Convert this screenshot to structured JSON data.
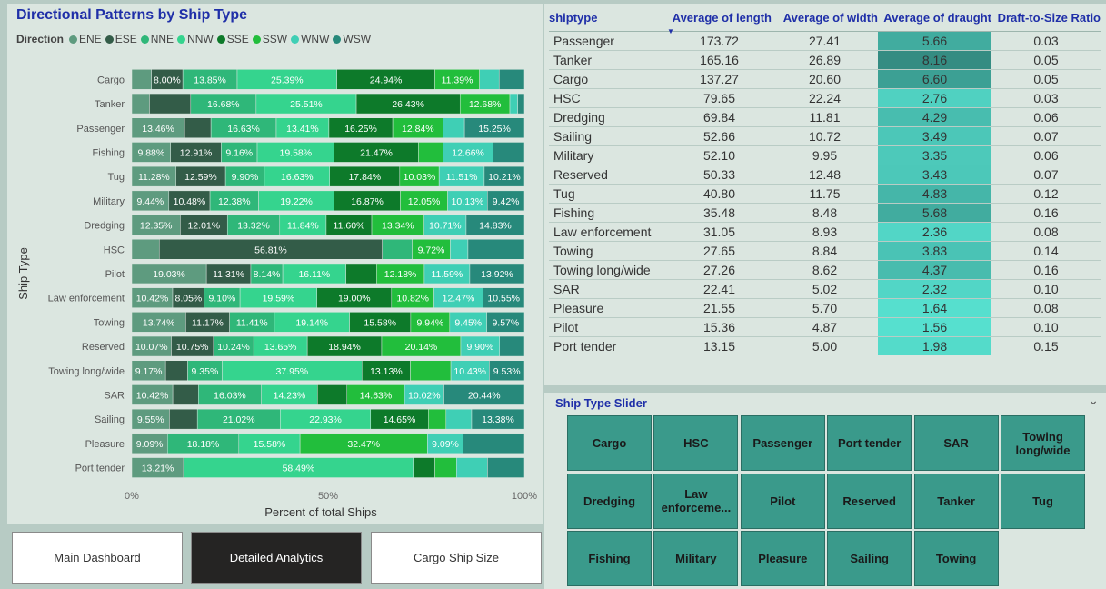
{
  "chart_panel": {
    "title": "Directional Patterns by Ship Type",
    "legend_title": "Direction",
    "x_axis_title": "Percent of total Ships",
    "y_axis_title": "Ship Type"
  },
  "chart_data": {
    "type": "bar",
    "orientation": "horizontal",
    "stacking": "percent",
    "title": "Directional Patterns by Ship Type",
    "xlabel": "Percent of total Ships",
    "ylabel": "Ship Type",
    "xlim": [
      0,
      100
    ],
    "x_ticks": [
      "0%",
      "50%",
      "100%"
    ],
    "legend_title": "Direction",
    "legend_position": "top",
    "series_names": [
      "ENE",
      "ESE",
      "NNE",
      "NNW",
      "SSE",
      "SSW",
      "WNW",
      "WSW"
    ],
    "series_colors": [
      "#5e9b7f",
      "#335c48",
      "#2fb779",
      "#35d48e",
      "#0d7a2a",
      "#22be3c",
      "#3fcfb5",
      "#27897b"
    ],
    "categories": [
      "Cargo",
      "Tanker",
      "Passenger",
      "Fishing",
      "Tug",
      "Military",
      "Dredging",
      "HSC",
      "Pilot",
      "Law enforcement",
      "Towing",
      "Reserved",
      "Towing long/wide",
      "SAR",
      "Sailing",
      "Pleasure",
      "Port tender"
    ],
    "rows": [
      {
        "values": [
          5.0,
          8.0,
          13.85,
          25.39,
          24.94,
          11.39,
          5.0,
          6.43
        ],
        "labels": [
          "",
          "8.00%",
          "13.85%",
          "25.39%",
          "24.94%",
          "11.39%",
          "",
          ""
        ]
      },
      {
        "values": [
          4.5,
          10.5,
          16.68,
          25.51,
          26.43,
          12.68,
          2.0,
          1.7
        ],
        "labels": [
          "",
          "",
          "16.68%",
          "25.51%",
          "26.43%",
          "12.68%",
          "",
          ""
        ]
      },
      {
        "values": [
          13.46,
          6.71,
          16.63,
          13.41,
          16.25,
          12.84,
          5.45,
          15.25
        ],
        "labels": [
          "13.46%",
          "",
          "16.63%",
          "13.41%",
          "16.25%",
          "12.84%",
          "",
          "15.25%"
        ]
      },
      {
        "values": [
          9.88,
          12.91,
          9.16,
          19.58,
          21.47,
          6.34,
          12.66,
          8.0
        ],
        "labels": [
          "9.88%",
          "12.91%",
          "9.16%",
          "19.58%",
          "21.47%",
          "",
          "12.66%",
          ""
        ]
      },
      {
        "values": [
          11.28,
          12.59,
          9.9,
          16.63,
          17.84,
          10.03,
          11.51,
          10.21
        ],
        "labels": [
          "11.28%",
          "12.59%",
          "9.90%",
          "16.63%",
          "17.84%",
          "10.03%",
          "11.51%",
          "10.21%"
        ]
      },
      {
        "values": [
          9.44,
          10.48,
          12.38,
          19.22,
          16.87,
          12.05,
          10.13,
          9.42
        ],
        "labels": [
          "9.44%",
          "10.48%",
          "12.38%",
          "19.22%",
          "16.87%",
          "12.05%",
          "10.13%",
          "9.42%"
        ]
      },
      {
        "values": [
          12.35,
          12.01,
          13.32,
          11.84,
          11.6,
          13.34,
          10.71,
          14.83
        ],
        "labels": [
          "12.35%",
          "12.01%",
          "13.32%",
          "11.84%",
          "11.60%",
          "13.34%",
          "10.71%",
          "14.83%"
        ]
      },
      {
        "values": [
          7.0,
          56.81,
          7.6,
          0,
          0,
          9.72,
          4.5,
          14.37
        ],
        "labels": [
          "",
          "56.81%",
          "",
          "",
          "",
          "9.72%",
          "",
          ""
        ]
      },
      {
        "values": [
          19.03,
          11.31,
          8.14,
          16.11,
          7.8,
          12.18,
          11.59,
          13.92
        ],
        "labels": [
          "19.03%",
          "11.31%",
          "8.14%",
          "16.11%",
          "",
          "12.18%",
          "11.59%",
          "13.92%"
        ]
      },
      {
        "values": [
          10.42,
          8.05,
          9.1,
          19.59,
          19.0,
          10.82,
          12.47,
          10.55
        ],
        "labels": [
          "10.42%",
          "8.05%",
          "9.10%",
          "19.59%",
          "19.00%",
          "10.82%",
          "12.47%",
          "10.55%"
        ]
      },
      {
        "values": [
          13.74,
          11.17,
          11.41,
          19.14,
          15.58,
          9.94,
          9.45,
          9.57
        ],
        "labels": [
          "13.74%",
          "11.17%",
          "11.41%",
          "19.14%",
          "15.58%",
          "9.94%",
          "9.45%",
          "9.57%"
        ]
      },
      {
        "values": [
          10.07,
          10.75,
          10.24,
          13.65,
          18.94,
          20.14,
          9.9,
          6.31
        ],
        "labels": [
          "10.07%",
          "10.75%",
          "10.24%",
          "13.65%",
          "18.94%",
          "20.14%",
          "9.90%",
          ""
        ]
      },
      {
        "values": [
          9.17,
          6.0,
          9.35,
          37.95,
          13.13,
          11.0,
          10.43,
          9.53
        ],
        "labels": [
          "9.17%",
          "",
          "9.35%",
          "37.95%",
          "13.13%",
          "",
          "10.43%",
          "9.53%"
        ]
      },
      {
        "values": [
          10.42,
          6.5,
          16.03,
          14.23,
          7.5,
          14.63,
          10.02,
          20.44
        ],
        "labels": [
          "10.42%",
          "",
          "16.03%",
          "14.23%",
          "",
          "14.63%",
          "10.02%",
          "20.44%"
        ]
      },
      {
        "values": [
          9.55,
          7.1,
          21.02,
          22.93,
          14.65,
          4.5,
          6.5,
          13.38
        ],
        "labels": [
          "9.55%",
          "",
          "21.02%",
          "22.93%",
          "14.65%",
          "",
          "",
          "13.38%"
        ]
      },
      {
        "values": [
          9.09,
          0,
          18.18,
          15.58,
          0,
          32.47,
          9.09,
          15.59
        ],
        "labels": [
          "9.09%",
          "",
          "18.18%",
          "15.58%",
          "",
          "32.47%",
          "9.09%",
          ""
        ]
      },
      {
        "values": [
          13.21,
          0,
          0,
          58.49,
          5.5,
          5.5,
          7.9,
          9.4
        ],
        "labels": [
          "13.21%",
          "",
          "",
          "58.49%",
          "",
          "",
          "",
          ""
        ]
      }
    ]
  },
  "nav": {
    "main": "Main Dashboard",
    "detailed": "Detailed Analytics",
    "cargo": "Cargo Ship Size"
  },
  "table": {
    "headers": [
      "shiptype",
      "Average of length",
      "Average of width",
      "Average of draught",
      "Draft-to-Size Ratio"
    ],
    "sorted_column": "Average of length",
    "highlight_color": "#3ebfa8",
    "rows": [
      [
        "Passenger",
        "173.72",
        "27.41",
        "5.66",
        "0.03"
      ],
      [
        "Tanker",
        "165.16",
        "26.89",
        "8.16",
        "0.05"
      ],
      [
        "Cargo",
        "137.27",
        "20.60",
        "6.60",
        "0.05"
      ],
      [
        "HSC",
        "79.65",
        "22.24",
        "2.76",
        "0.03"
      ],
      [
        "Dredging",
        "69.84",
        "11.81",
        "4.29",
        "0.06"
      ],
      [
        "Sailing",
        "52.66",
        "10.72",
        "3.49",
        "0.07"
      ],
      [
        "Military",
        "52.10",
        "9.95",
        "3.35",
        "0.06"
      ],
      [
        "Reserved",
        "50.33",
        "12.48",
        "3.43",
        "0.07"
      ],
      [
        "Tug",
        "40.80",
        "11.75",
        "4.83",
        "0.12"
      ],
      [
        "Fishing",
        "35.48",
        "8.48",
        "5.68",
        "0.16"
      ],
      [
        "Law enforcement",
        "31.05",
        "8.93",
        "2.36",
        "0.08"
      ],
      [
        "Towing",
        "27.65",
        "8.84",
        "3.83",
        "0.14"
      ],
      [
        "Towing long/wide",
        "27.26",
        "8.62",
        "4.37",
        "0.16"
      ],
      [
        "SAR",
        "22.41",
        "5.02",
        "2.32",
        "0.10"
      ],
      [
        "Pleasure",
        "21.55",
        "5.70",
        "1.64",
        "0.08"
      ],
      [
        "Pilot",
        "15.36",
        "4.87",
        "1.56",
        "0.10"
      ],
      [
        "Port tender",
        "13.15",
        "5.00",
        "1.98",
        "0.15"
      ]
    ]
  },
  "slicer": {
    "title": "Ship Type Slider",
    "items": [
      "Cargo",
      "HSC",
      "Passenger",
      "Port tender",
      "SAR",
      "Towing long/wide",
      "Dredging",
      "Law enforceme...",
      "Pilot",
      "Reserved",
      "Tanker",
      "Tug",
      "Fishing",
      "Military",
      "Pleasure",
      "Sailing",
      "Towing"
    ]
  }
}
